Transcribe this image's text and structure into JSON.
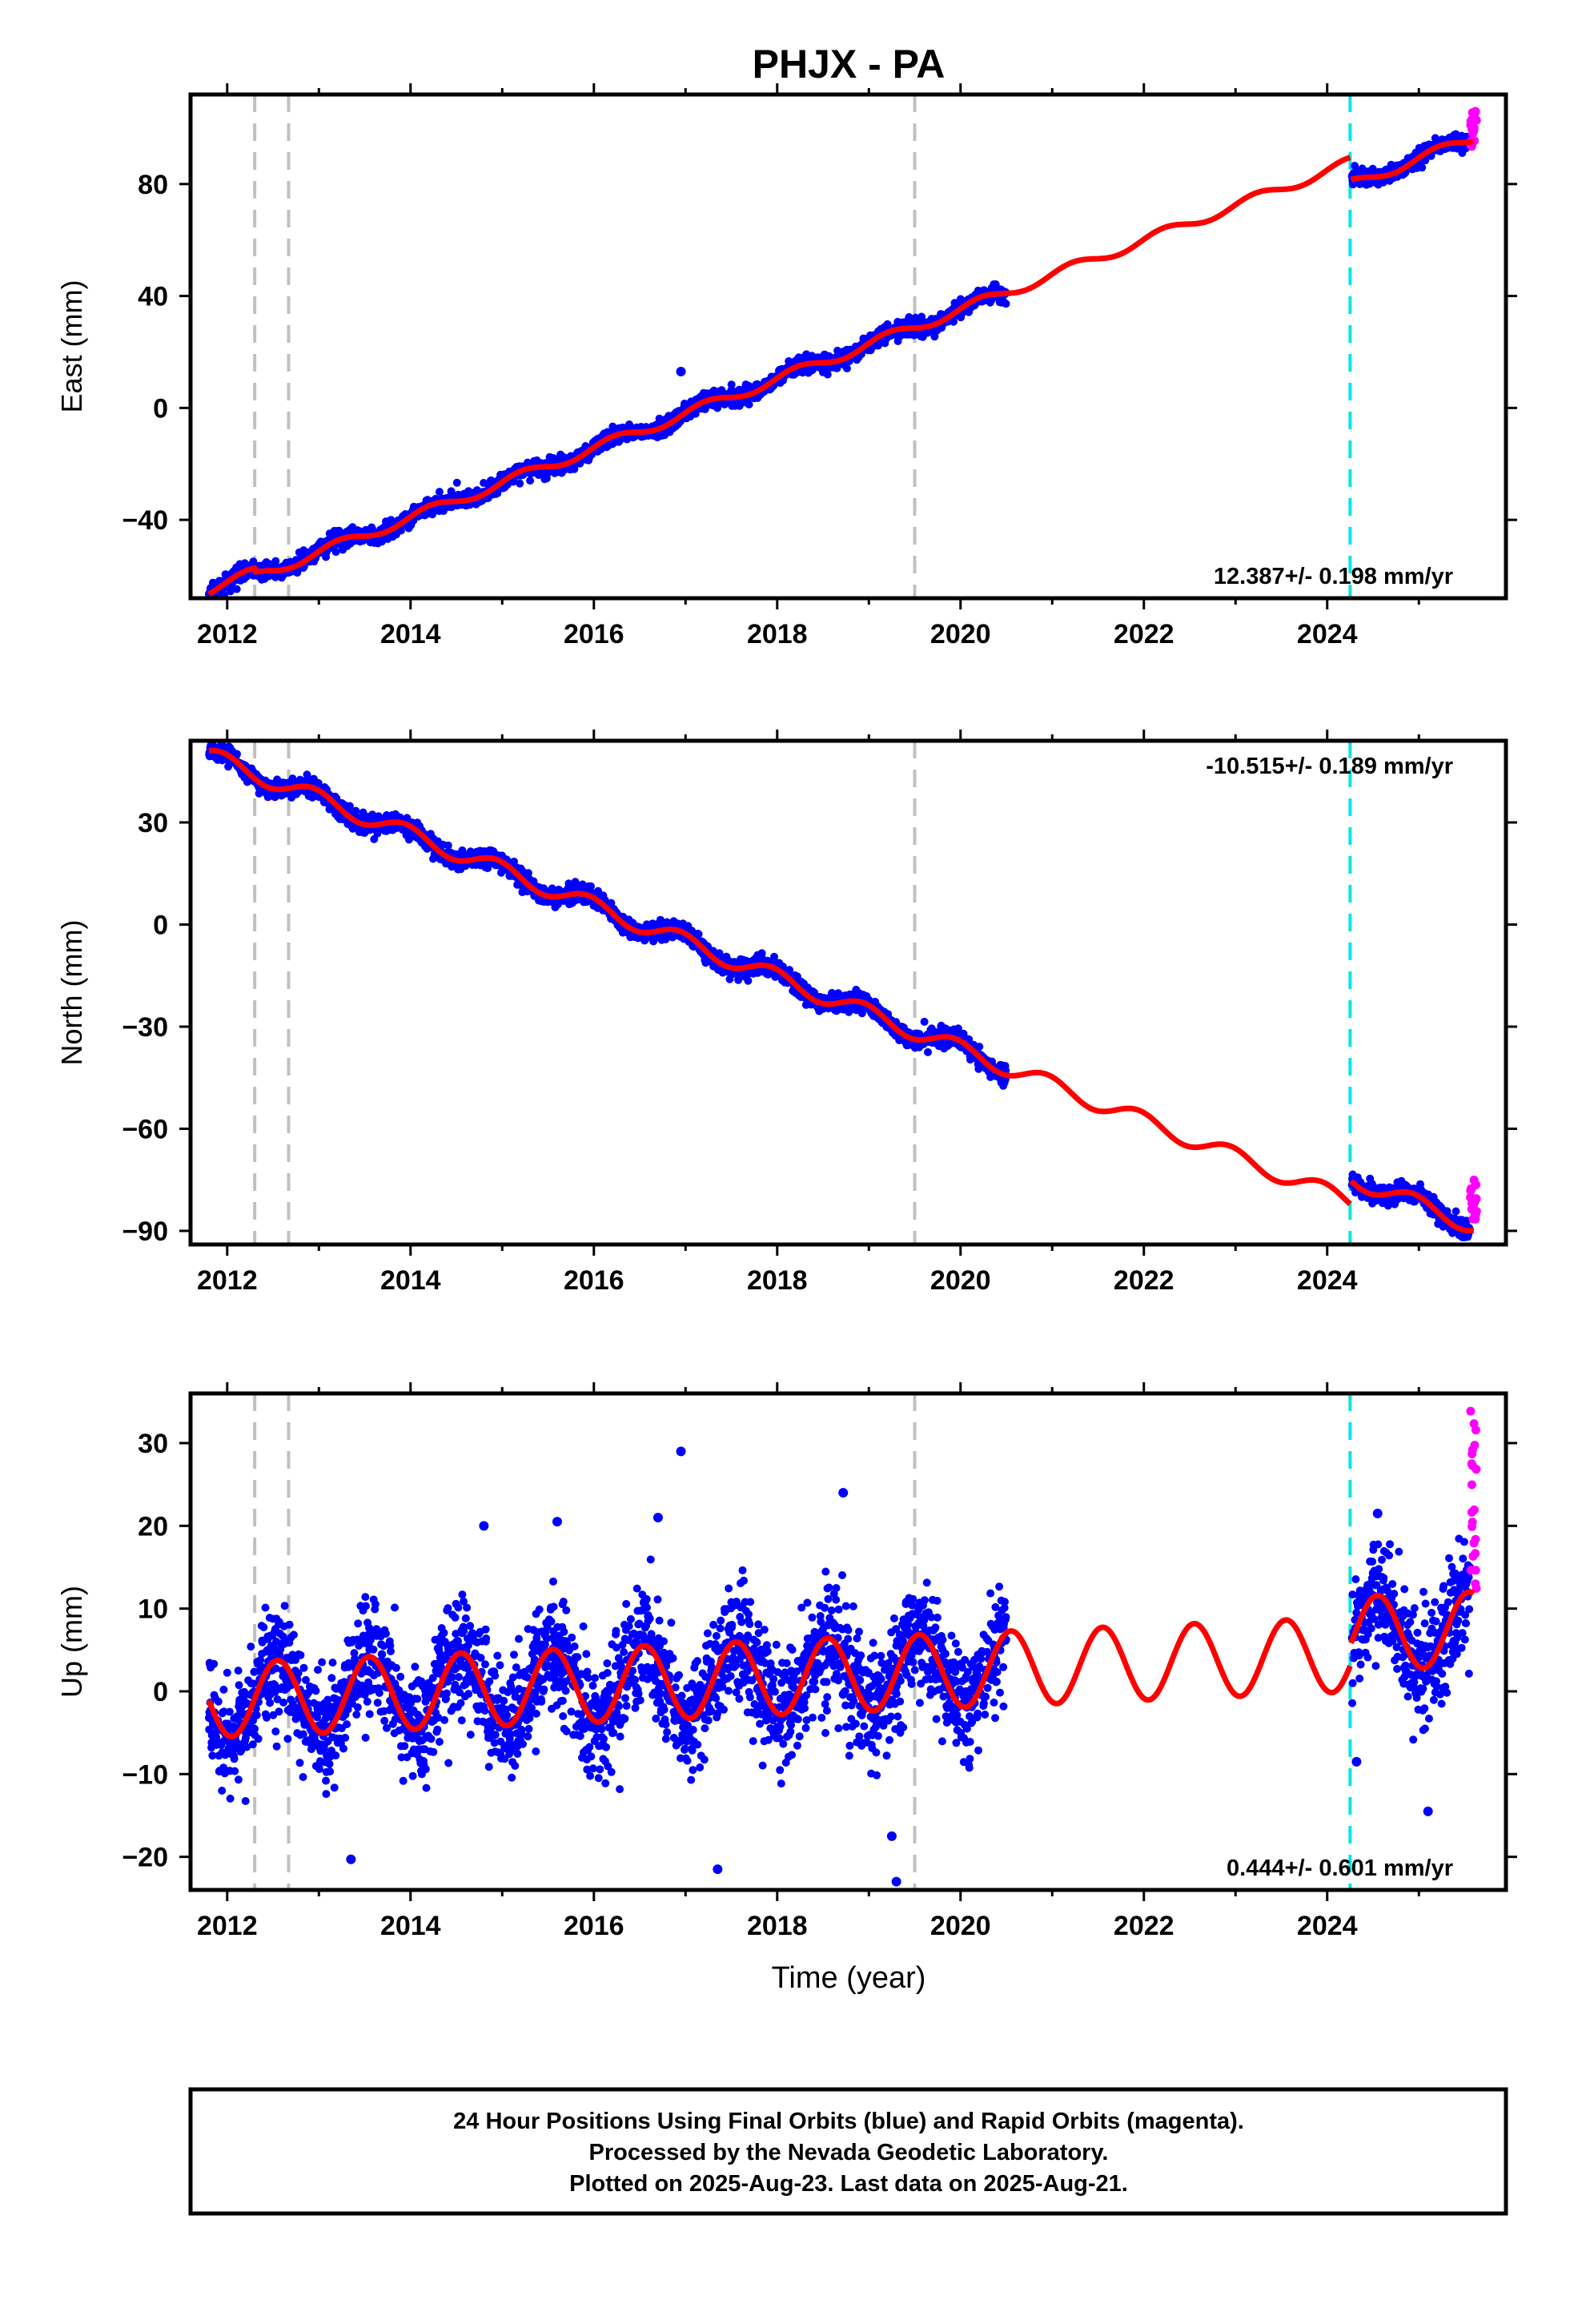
{
  "title": "PHJX - PA",
  "xlabel": "Time (year)",
  "footer": {
    "lines": [
      "24 Hour Positions Using Final Orbits (blue) and Rapid Orbits (magenta).",
      "Processed by the Nevada Geodetic Laboratory.",
      "Plotted on 2025-Aug-23. Last data on 2025-Aug-21."
    ]
  },
  "colors": {
    "final": "#0000ff",
    "rapid": "#ff00ff",
    "model": "#ff0000",
    "gap_marker": "#c0c0c0",
    "equipment_marker": "#00e5e5"
  },
  "chart_data": [
    {
      "type": "scatter",
      "id": "east",
      "ylabel": "East (mm)",
      "rate_label": "12.387+/- 0.198 mm/yr",
      "xlim": [
        2011.6,
        2025.95
      ],
      "ylim": [
        -68,
        112
      ],
      "xticks": [
        2012,
        2014,
        2016,
        2018,
        2020,
        2022,
        2024
      ],
      "yticks": [
        -40,
        0,
        40,
        80
      ],
      "gray_lines": [
        2012.3,
        2012.67,
        2019.5
      ],
      "cyan_lines": [
        2024.25
      ],
      "model": {
        "start": 2011.8,
        "end": 2025.6,
        "pre_offset": -62.5,
        "post_offset": -70.5,
        "offset_epoch": 2024.25,
        "rate": 12.387,
        "annual_amp": 1.8,
        "annual_phase": 0.2,
        "steps": [
          {
            "t": 2012.3,
            "dy": -1.5
          }
        ]
      },
      "final_segments": [
        [
          2011.8,
          2020.5
        ],
        [
          2024.27,
          2025.56
        ]
      ],
      "rapid_segment": [
        2025.56,
        2025.63
      ],
      "scatter_sd": 1.4,
      "rapid_range": [
        93,
        106
      ],
      "outliers": [
        {
          "t": 2016.95,
          "y": 13
        }
      ]
    },
    {
      "type": "scatter",
      "id": "north",
      "ylabel": "North (mm)",
      "rate_label": "-10.515+/- 0.189 mm/yr",
      "xlim": [
        2011.6,
        2025.95
      ],
      "ylim": [
        -94,
        54
      ],
      "xticks": [
        2012,
        2014,
        2016,
        2018,
        2020,
        2022,
        2024
      ],
      "yticks": [
        -90,
        -60,
        -30,
        0,
        30
      ],
      "gray_lines": [
        2012.3,
        2012.67,
        2019.5
      ],
      "cyan_lines": [
        2024.25
      ],
      "model": {
        "start": 2011.8,
        "end": 2025.6,
        "pre_offset": 47.5,
        "post_offset": 54.5,
        "offset_epoch": 2024.25,
        "rate": -10.515,
        "annual_amp": 2.5,
        "annual_phase": 1.9,
        "steps": []
      },
      "final_segments": [
        [
          2011.8,
          2020.5
        ],
        [
          2024.27,
          2025.56
        ]
      ],
      "rapid_segment": [
        2025.56,
        2025.63
      ],
      "scatter_sd": 1.3,
      "rapid_range": [
        -87,
        -75
      ],
      "outliers": []
    },
    {
      "type": "scatter",
      "id": "up",
      "ylabel": "Up (mm)",
      "rate_label": "0.444+/- 0.601 mm/yr",
      "xlim": [
        2011.6,
        2025.95
      ],
      "ylim": [
        -24,
        36
      ],
      "xticks": [
        2012,
        2014,
        2016,
        2018,
        2020,
        2022,
        2024
      ],
      "yticks": [
        -20,
        -10,
        0,
        10,
        20,
        30
      ],
      "gray_lines": [
        2012.3,
        2012.67,
        2019.5
      ],
      "cyan_lines": [
        2024.25
      ],
      "model": {
        "start": 2011.8,
        "end": 2025.6,
        "pre_offset": -1.0,
        "post_offset": 1.5,
        "offset_epoch": 2024.25,
        "rate": 0.444,
        "annual_amp": 4.5,
        "annual_phase": 4.4,
        "steps": []
      },
      "final_segments": [
        [
          2011.8,
          2020.5
        ],
        [
          2024.27,
          2025.56
        ]
      ],
      "rapid_segment": [
        2025.56,
        2025.63
      ],
      "scatter_sd": 3.4,
      "rapid_range": [
        9,
        35
      ],
      "outliers": [
        {
          "t": 2016.95,
          "y": 29
        },
        {
          "t": 2018.72,
          "y": 24
        },
        {
          "t": 2016.7,
          "y": 21
        },
        {
          "t": 2015.6,
          "y": 20.5
        },
        {
          "t": 2014.8,
          "y": 20
        },
        {
          "t": 2013.35,
          "y": -20.3
        },
        {
          "t": 2017.35,
          "y": -21.5
        },
        {
          "t": 2019.3,
          "y": -23
        },
        {
          "t": 2019.25,
          "y": -17.5
        },
        {
          "t": 2024.55,
          "y": 21.5
        },
        {
          "t": 2025.1,
          "y": -14.5
        },
        {
          "t": 2024.32,
          "y": -8.5
        }
      ]
    }
  ]
}
